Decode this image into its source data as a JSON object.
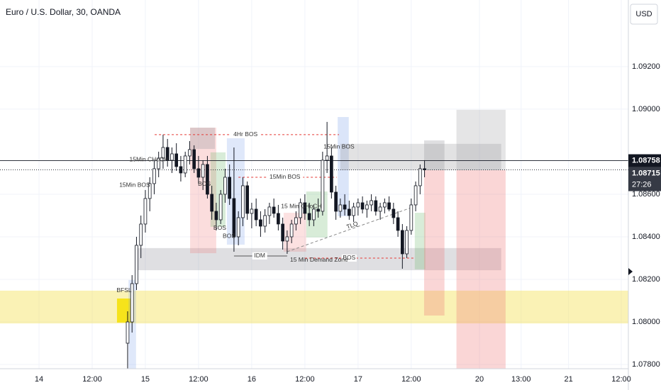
{
  "chart_data": {
    "type": "candlestick",
    "title": "Euro / U.S. Dollar, 30, OANDA",
    "currency_button": "USD",
    "xlim": [
      -8.8,
      133
    ],
    "ylim": [
      1.0778,
      1.09513
    ],
    "xticks": [
      {
        "value": 0,
        "label": "14"
      },
      {
        "value": 12,
        "label": "12:00"
      },
      {
        "value": 24,
        "label": "15"
      },
      {
        "value": 36,
        "label": "12:00"
      },
      {
        "value": 48,
        "label": "16"
      },
      {
        "value": 60,
        "label": "12:00"
      },
      {
        "value": 72,
        "label": "17"
      },
      {
        "value": 84,
        "label": "12:00"
      },
      {
        "value": 99.4,
        "label": "20"
      },
      {
        "value": 108.8,
        "label": "13:00"
      },
      {
        "value": 119.5,
        "label": "21"
      },
      {
        "value": 131.4,
        "label": "12:00"
      }
    ],
    "yticks": [
      {
        "value": 1.092,
        "label": "1.09200"
      },
      {
        "value": 1.09,
        "label": "1.09000"
      },
      {
        "value": 1.086,
        "label": "1.08600"
      },
      {
        "value": 1.084,
        "label": "1.08400"
      },
      {
        "value": 1.082,
        "label": "1.08200"
      },
      {
        "value": 1.08,
        "label": "1.08000"
      },
      {
        "value": 1.078,
        "label": "1.07800"
      }
    ],
    "price_line": {
      "value": 1.08758,
      "label": "1.08758"
    },
    "last_price": {
      "value": 1.08715,
      "label": "1.08715",
      "countdown": "27:26"
    },
    "up_color": "#ffffff",
    "down_color": "#131722",
    "x": [
      20,
      21,
      22,
      23,
      24,
      25,
      26,
      27,
      28,
      29,
      30,
      31,
      32,
      33,
      34,
      35,
      36,
      37,
      38,
      39,
      40,
      41,
      42,
      43,
      44,
      45,
      46,
      47,
      48,
      49,
      50,
      51,
      52,
      53,
      54,
      55,
      56,
      57,
      58,
      59,
      60,
      61,
      62,
      63,
      64,
      65,
      66,
      67,
      68,
      69,
      70,
      71,
      72,
      73,
      74,
      75,
      76,
      77,
      78,
      79,
      80,
      81,
      82,
      83,
      84,
      85,
      86,
      87
    ],
    "ohlc": [
      [
        1.079,
        1.0805,
        1.0778,
        1.08
      ],
      [
        1.08,
        1.0822,
        1.0795,
        1.0818
      ],
      [
        1.0818,
        1.084,
        1.0815,
        1.0836
      ],
      [
        1.0836,
        1.085,
        1.083,
        1.0846
      ],
      [
        1.0846,
        1.0862,
        1.0842,
        1.0858
      ],
      [
        1.0858,
        1.0868,
        1.0852,
        1.0865
      ],
      [
        1.0865,
        1.0876,
        1.086,
        1.0872
      ],
      [
        1.0872,
        1.088,
        1.0868,
        1.0877
      ],
      [
        1.0877,
        1.0888,
        1.0872,
        1.0882
      ],
      [
        1.0882,
        1.0886,
        1.0873,
        1.0876
      ],
      [
        1.0876,
        1.0882,
        1.087,
        1.0879
      ],
      [
        1.0879,
        1.0884,
        1.0871,
        1.0873
      ],
      [
        1.0873,
        1.0878,
        1.0866,
        1.087
      ],
      [
        1.087,
        1.088,
        1.0868,
        1.0878
      ],
      [
        1.0878,
        1.0885,
        1.0874,
        1.0881
      ],
      [
        1.0881,
        1.0883,
        1.087,
        1.0872
      ],
      [
        1.0872,
        1.0878,
        1.0865,
        1.0868
      ],
      [
        1.0868,
        1.0876,
        1.0862,
        1.0874
      ],
      [
        1.0874,
        1.0878,
        1.0858,
        1.086
      ],
      [
        1.086,
        1.0864,
        1.0848,
        1.0852
      ],
      [
        1.0852,
        1.0856,
        1.0843,
        1.0848
      ],
      [
        1.0848,
        1.0862,
        1.0846,
        1.086
      ],
      [
        1.086,
        1.0872,
        1.0856,
        1.0868
      ],
      [
        1.0868,
        1.0874,
        1.0855,
        1.0858
      ],
      [
        1.0858,
        1.0882,
        1.0833,
        1.084
      ],
      [
        1.084,
        1.0852,
        1.0836,
        1.0849
      ],
      [
        1.0849,
        1.0868,
        1.0845,
        1.0864
      ],
      [
        1.0864,
        1.0866,
        1.0848,
        1.0851
      ],
      [
        1.0851,
        1.0856,
        1.0844,
        1.0853
      ],
      [
        1.0853,
        1.0858,
        1.0845,
        1.0848
      ],
      [
        1.0848,
        1.0852,
        1.084,
        1.0845
      ],
      [
        1.0845,
        1.0853,
        1.0842,
        1.085
      ],
      [
        1.085,
        1.0856,
        1.0846,
        1.0854
      ],
      [
        1.0854,
        1.0858,
        1.0849,
        1.0851
      ],
      [
        1.0851,
        1.0855,
        1.0843,
        1.0846
      ],
      [
        1.0846,
        1.0849,
        1.0834,
        1.0838
      ],
      [
        1.0838,
        1.0843,
        1.0832,
        1.084
      ],
      [
        1.084,
        1.0848,
        1.0837,
        1.0846
      ],
      [
        1.0846,
        1.0852,
        1.0843,
        1.0849
      ],
      [
        1.0849,
        1.0858,
        1.0846,
        1.0856
      ],
      [
        1.0856,
        1.086,
        1.0848,
        1.0851
      ],
      [
        1.0851,
        1.0856,
        1.0845,
        1.0848
      ],
      [
        1.0848,
        1.0855,
        1.0845,
        1.0853
      ],
      [
        1.0853,
        1.0858,
        1.0849,
        1.0852
      ],
      [
        1.0852,
        1.088,
        1.085,
        1.0876
      ],
      [
        1.0876,
        1.0894,
        1.087,
        1.0878
      ],
      [
        1.0878,
        1.0882,
        1.0858,
        1.0861
      ],
      [
        1.0861,
        1.0864,
        1.0848,
        1.0852
      ],
      [
        1.0852,
        1.0858,
        1.0849,
        1.0855
      ],
      [
        1.0855,
        1.086,
        1.085,
        1.0853
      ],
      [
        1.0853,
        1.0857,
        1.0848,
        1.085
      ],
      [
        1.085,
        1.0856,
        1.0847,
        1.0854
      ],
      [
        1.0854,
        1.0858,
        1.085,
        1.0856
      ],
      [
        1.0856,
        1.0859,
        1.0851,
        1.0853
      ],
      [
        1.0853,
        1.0857,
        1.0849,
        1.0855
      ],
      [
        1.0855,
        1.086,
        1.0852,
        1.0857
      ],
      [
        1.0857,
        1.0859,
        1.085,
        1.0852
      ],
      [
        1.0852,
        1.0856,
        1.0848,
        1.0854
      ],
      [
        1.0854,
        1.0858,
        1.0851,
        1.0856
      ],
      [
        1.0856,
        1.0859,
        1.0852,
        1.0853
      ],
      [
        1.0853,
        1.0856,
        1.0846,
        1.0849
      ],
      [
        1.0849,
        1.0852,
        1.084,
        1.0843
      ],
      [
        1.0843,
        1.0846,
        1.0825,
        1.0832
      ],
      [
        1.0832,
        1.0845,
        1.083,
        1.0843
      ],
      [
        1.0843,
        1.0858,
        1.0841,
        1.0855
      ],
      [
        1.0855,
        1.0866,
        1.0852,
        1.0864
      ],
      [
        1.0864,
        1.0874,
        1.086,
        1.0872
      ],
      [
        1.0872,
        1.0876,
        1.0868,
        1.08715
      ]
    ],
    "zones": [
      {
        "x": [
          -8.8,
          133
        ],
        "y": [
          1.07993,
          1.08147
        ],
        "color": "rgba(244,226,90,0.45)"
      },
      {
        "x": [
          17.6,
          21.3
        ],
        "y": [
          1.07997,
          1.0811
        ],
        "color": "rgba(245,224,0,0.85)"
      },
      {
        "x": [
          20.2,
          21.9
        ],
        "y": [
          1.0778,
          1.08197
        ],
        "color": "rgba(110,150,230,0.22)"
      },
      {
        "x": [
          21.6,
          104.3
        ],
        "y": [
          1.08243,
          1.08347
        ],
        "color": "rgba(140,140,150,0.28)"
      },
      {
        "x": [
          34.1,
          40
        ],
        "y": [
          1.08323,
          1.08913
        ],
        "color": "rgba(240,120,120,0.25)"
      },
      {
        "x": [
          34.1,
          39.7
        ],
        "y": [
          1.08813,
          1.08913
        ],
        "color": "rgba(150,150,155,0.3)"
      },
      {
        "x": [
          38.7,
          42.1
        ],
        "y": [
          1.08447,
          1.08797
        ],
        "color": "rgba(100,180,100,0.25)"
      },
      {
        "x": [
          42.4,
          46.4
        ],
        "y": [
          1.08363,
          1.08863
        ],
        "color": "rgba(110,150,230,0.22)"
      },
      {
        "x": [
          55.2,
          60.3
        ],
        "y": [
          1.0833,
          1.08513
        ],
        "color": "rgba(240,120,120,0.22)"
      },
      {
        "x": [
          60.3,
          65.1
        ],
        "y": [
          1.08397,
          1.08613
        ],
        "color": "rgba(100,180,100,0.25)"
      },
      {
        "x": [
          67.4,
          69.9
        ],
        "y": [
          1.08497,
          1.08963
        ],
        "color": "rgba(110,150,230,0.25)"
      },
      {
        "x": [
          68,
          104.3
        ],
        "y": [
          1.08713,
          1.08837
        ],
        "color": "rgba(150,150,155,0.28)"
      },
      {
        "x": [
          84.8,
          87.2
        ],
        "y": [
          1.08247,
          1.08513
        ],
        "color": "rgba(100,180,100,0.25)"
      },
      {
        "x": [
          86.9,
          91.5
        ],
        "y": [
          1.08713,
          1.08853
        ],
        "color": "rgba(150,150,155,0.3)"
      },
      {
        "x": [
          86.9,
          91.5
        ],
        "y": [
          1.0803,
          1.08713
        ],
        "color": "rgba(240,120,120,0.3)"
      },
      {
        "x": [
          94.2,
          105.3
        ],
        "y": [
          1.08713,
          1.08997
        ],
        "color": "rgba(150,150,155,0.25)"
      },
      {
        "x": [
          94.2,
          105.3
        ],
        "y": [
          1.0778,
          1.08713
        ],
        "color": "rgba(240,120,120,0.3)"
      }
    ],
    "levels": [
      {
        "x": [
          26.1,
          67.7
        ],
        "y": 1.0888,
        "label": "4Hr BOS",
        "label_x": 46.6,
        "color": "#e53935",
        "dashed": true
      },
      {
        "x": [
          45,
          67.2
        ],
        "y": 1.0868,
        "label": "15Min BOS",
        "label_x": 55.5,
        "color": "#e53935",
        "dashed": true
      },
      {
        "x": [
          60,
          84.8
        ],
        "y": 1.083,
        "label": "BOS",
        "label_x": 70,
        "color": "#e53935",
        "dashed": true
      },
      {
        "x": [
          44,
          56
        ],
        "y": 1.0831,
        "label": "IDM",
        "label_x": 49.8,
        "color": "#555555",
        "dashed": false
      }
    ],
    "trendline": {
      "x": [
        56,
        84
      ],
      "y": [
        1.0833,
        1.08537
      ],
      "label": "TLQ",
      "label_x": 70.7,
      "label_y": 1.08453
    },
    "annotations": [
      {
        "text": "BFSL",
        "x": 19.2,
        "y": 1.08147
      },
      {
        "text": "15Min BOS",
        "x": 21.6,
        "y": 1.08643
      },
      {
        "text": "15Min CHoCH",
        "x": 24.8,
        "y": 1.08763
      },
      {
        "text": "BOS",
        "x": 37.3,
        "y": 1.08647
      },
      {
        "text": "BOS",
        "x": 40.8,
        "y": 1.0844
      },
      {
        "text": "BOS",
        "x": 42.9,
        "y": 1.08403
      },
      {
        "text": "15Min BOS",
        "x": 67.7,
        "y": 1.08823
      },
      {
        "text": "15 Min CHoCH",
        "x": 59.2,
        "y": 1.08543
      },
      {
        "text": "15 Min Demand Zone",
        "x": 63.2,
        "y": 1.0829
      }
    ]
  }
}
